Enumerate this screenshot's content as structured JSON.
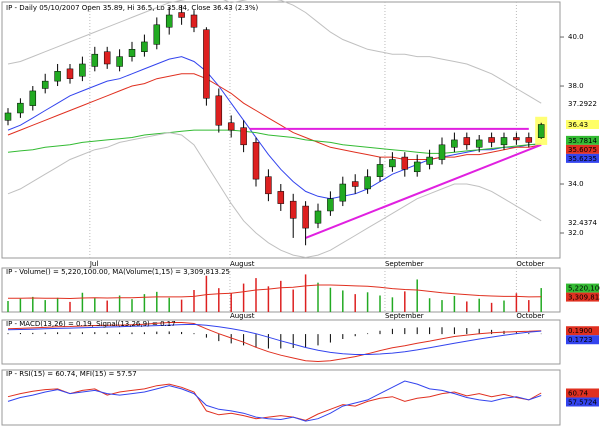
{
  "chart_data": [
    {
      "type": "candlestick",
      "title": "IP - Daily 05/10/2007 Open 35.89, Hi 36.5, Lo 35.84, Close 36.43 (2.3%)",
      "x_labels": [
        {
          "value": 6.6,
          "label": "Jul"
        },
        {
          "value": 17.9,
          "label": "August"
        },
        {
          "value": 30.4,
          "label": "September"
        },
        {
          "value": 41,
          "label": "October"
        }
      ],
      "open": [
        36.6,
        36.9,
        37.2,
        37.9,
        38.2,
        38.7,
        38.4,
        38.8,
        39.4,
        38.8,
        39.2,
        39.4,
        39.7,
        40.4,
        41.0,
        40.9,
        40.3,
        37.6,
        36.5,
        36.3,
        35.7,
        34.3,
        33.7,
        33.3,
        33.1,
        32.4,
        32.9,
        33.3,
        34.1,
        33.8,
        34.3,
        34.7,
        35.1,
        34.5,
        34.8,
        35.0,
        35.5,
        35.9,
        35.5,
        35.9,
        35.6,
        35.9,
        35.9,
        35.89
      ],
      "high": [
        37.1,
        37.5,
        38.0,
        38.5,
        38.9,
        38.9,
        39.2,
        39.6,
        39.6,
        39.5,
        39.8,
        40.1,
        40.8,
        41.2,
        41.3,
        41.1,
        40.4,
        37.9,
        36.8,
        36.6,
        35.9,
        34.6,
        34.0,
        33.6,
        33.3,
        33.2,
        33.7,
        34.3,
        34.4,
        34.6,
        35.1,
        35.3,
        35.3,
        35.2,
        35.4,
        35.9,
        36.1,
        36.1,
        36.0,
        36.1,
        36.1,
        36.1,
        36.1,
        36.5
      ],
      "low": [
        36.4,
        36.7,
        37.0,
        37.7,
        38.0,
        38.1,
        38.2,
        38.6,
        38.7,
        38.6,
        39.0,
        39.2,
        39.5,
        40.1,
        40.5,
        40.2,
        37.2,
        36.1,
        35.9,
        35.3,
        33.9,
        33.3,
        32.9,
        31.8,
        31.5,
        32.2,
        32.7,
        33.1,
        33.6,
        33.6,
        34.1,
        34.5,
        34.3,
        34.3,
        34.6,
        34.8,
        35.3,
        35.4,
        35.3,
        35.5,
        35.4,
        35.6,
        35.5,
        35.84
      ],
      "close": [
        36.9,
        37.3,
        37.8,
        38.2,
        38.6,
        38.3,
        38.9,
        39.3,
        38.9,
        39.2,
        39.5,
        39.8,
        40.5,
        40.9,
        40.8,
        40.4,
        37.5,
        36.4,
        36.2,
        35.6,
        34.2,
        33.6,
        33.2,
        32.6,
        32.2,
        32.9,
        33.4,
        34.0,
        33.9,
        34.3,
        34.8,
        35.0,
        34.6,
        34.9,
        35.1,
        35.6,
        35.8,
        35.6,
        35.8,
        35.7,
        35.9,
        35.8,
        35.7,
        36.43
      ],
      "up_color": "#22aa22",
      "down_color": "#dd2020",
      "series": [
        {
          "color": "#3344ee",
          "values": [
            36.2,
            36.4,
            36.7,
            37.0,
            37.3,
            37.6,
            37.8,
            38.0,
            38.2,
            38.3,
            38.5,
            38.7,
            38.9,
            39.1,
            39.2,
            39.0,
            38.6,
            38.0,
            37.3,
            36.6,
            35.9,
            35.2,
            34.6,
            34.1,
            33.7,
            33.5,
            33.4,
            33.5,
            33.6,
            33.8,
            34.1,
            34.4,
            34.6,
            34.8,
            35.0,
            35.1,
            35.2,
            35.3,
            35.4,
            35.4,
            35.5,
            35.5,
            35.6,
            35.62
          ]
        },
        {
          "color": "#e03020",
          "values": [
            36.0,
            36.2,
            36.4,
            36.6,
            36.8,
            37.0,
            37.2,
            37.4,
            37.6,
            37.8,
            38.0,
            38.1,
            38.3,
            38.4,
            38.5,
            38.5,
            38.3,
            38.0,
            37.7,
            37.3,
            37.0,
            36.7,
            36.4,
            36.1,
            35.9,
            35.7,
            35.5,
            35.4,
            35.3,
            35.2,
            35.1,
            35.1,
            35.0,
            35.0,
            35.0,
            35.1,
            35.1,
            35.2,
            35.2,
            35.3,
            35.4,
            35.5,
            35.5,
            35.6
          ]
        },
        {
          "color": "#33bb33",
          "values": [
            35.3,
            35.35,
            35.4,
            35.5,
            35.55,
            35.6,
            35.7,
            35.75,
            35.8,
            35.85,
            35.9,
            36.0,
            36.05,
            36.1,
            36.15,
            36.2,
            36.2,
            36.2,
            36.2,
            36.15,
            36.1,
            36.0,
            35.95,
            35.9,
            35.8,
            35.75,
            35.7,
            35.6,
            35.55,
            35.5,
            35.45,
            35.4,
            35.35,
            35.3,
            35.25,
            35.25,
            35.3,
            35.35,
            35.4,
            35.45,
            35.5,
            35.55,
            35.6,
            35.65
          ]
        },
        {
          "color": "#c0c0c0",
          "values": [
            38.9,
            39.0,
            39.2,
            39.4,
            39.6,
            39.8,
            40.0,
            40.2,
            40.4,
            40.6,
            40.8,
            41.0,
            41.2,
            41.4,
            41.5,
            41.6,
            41.7,
            41.6,
            41.4,
            41.5,
            41.6,
            41.6,
            41.5,
            41.3,
            41.0,
            40.6,
            40.2,
            39.9,
            39.7,
            39.5,
            39.4,
            39.3,
            39.3,
            39.2,
            39.2,
            39.1,
            39.0,
            38.9,
            38.7,
            38.5,
            38.2,
            37.9,
            37.6,
            37.3
          ]
        },
        {
          "color": "#c0c0c0",
          "values": [
            33.6,
            33.8,
            34.1,
            34.4,
            34.7,
            35.0,
            35.2,
            35.4,
            35.5,
            35.7,
            35.8,
            35.9,
            36.0,
            36.1,
            36.0,
            35.6,
            34.8,
            34.0,
            33.2,
            32.5,
            32.0,
            31.6,
            31.3,
            31.1,
            31.0,
            31.1,
            31.3,
            31.6,
            31.9,
            32.2,
            32.5,
            32.8,
            33.1,
            33.4,
            33.6,
            33.8,
            34.0,
            34.0,
            33.9,
            33.7,
            33.4,
            33.1,
            32.8,
            32.5
          ]
        }
      ],
      "trendlines": [
        {
          "color": "#e020e0",
          "x": [
            19.5,
            42
          ],
          "y": [
            36.25,
            36.25
          ]
        },
        {
          "color": "#e020e0",
          "x": [
            24,
            43
          ],
          "y": [
            31.8,
            35.6
          ]
        }
      ],
      "ylim": [
        30.98,
        41.43
      ],
      "yticks": [
        {
          "value": 40,
          "label": "40.0"
        },
        {
          "value": 38,
          "label": "38.0"
        },
        {
          "value": 34,
          "label": "34.0"
        },
        {
          "value": 32,
          "label": "32.0"
        }
      ],
      "price_labels": [
        {
          "value": 37.2922,
          "label": "37.2922",
          "background": "#ffffff"
        },
        {
          "value": 36.43,
          "label": "36.43",
          "background": "#ffff66"
        },
        {
          "value": 35.7814,
          "label": "35.7814",
          "background": "#33bb33"
        },
        {
          "value": 35.6075,
          "label": "35.6075",
          "background": "#e03020"
        },
        {
          "value": 35.6235,
          "label": "35.6235",
          "background": "#3344ee"
        },
        {
          "value": 32.4374,
          "label": "32.4374",
          "background": "#ffffff"
        }
      ]
    },
    {
      "type": "volume",
      "title": "IP - Volume() = 5,220,100.00, MA(Volume(1,15) = 3,309,813.25",
      "x_labels": [
        {
          "value": 17.9,
          "label": "August"
        },
        {
          "value": 30.4,
          "label": "September"
        },
        {
          "value": 41,
          "label": "October"
        }
      ],
      "values": [
        2400000,
        2900000,
        3300000,
        2600000,
        3100000,
        2200000,
        4200000,
        3000000,
        2500000,
        3600000,
        2800000,
        3900000,
        4400000,
        3100000,
        2700000,
        4800000,
        7900000,
        5200000,
        4100000,
        6200000,
        7400000,
        5600000,
        6800000,
        4900000,
        8200000,
        6400000,
        5300000,
        4700000,
        3900000,
        4300000,
        3600000,
        3200000,
        4500000,
        7100000,
        3000000,
        2600000,
        3500000,
        2300000,
        2900000,
        2000000,
        2500000,
        4100000,
        2600000,
        5220100
      ],
      "ma_color": "#e03020",
      "ma_values": [
        3000000,
        3000000,
        3050000,
        3000000,
        3000000,
        2950000,
        3050000,
        3100000,
        3050000,
        3100000,
        3100000,
        3200000,
        3300000,
        3300000,
        3300000,
        3400000,
        3800000,
        4000000,
        4100000,
        4400000,
        4800000,
        5000000,
        5300000,
        5400000,
        5700000,
        5900000,
        5900000,
        5800000,
        5700000,
        5600000,
        5400000,
        5100000,
        4900000,
        4800000,
        4500000,
        4200000,
        4000000,
        3800000,
        3600000,
        3500000,
        3400000,
        3400000,
        3300000,
        3309813
      ],
      "ylim": [
        0,
        9600000
      ],
      "price_labels": [
        {
          "value": 5220100,
          "label": "5,220,100",
          "background": "#33bb33"
        },
        {
          "value": 3309813,
          "label": "3,309,813",
          "background": "#e03020"
        }
      ]
    },
    {
      "type": "macd",
      "title": "IP - MACD(13,26) = 0.19, Signal(13,26,9) = 0.17",
      "series": [
        {
          "color": "#e03020",
          "values": [
            0.3,
            0.32,
            0.35,
            0.38,
            0.42,
            0.43,
            0.46,
            0.49,
            0.5,
            0.51,
            0.53,
            0.56,
            0.62,
            0.66,
            0.66,
            0.6,
            0.3,
            0.02,
            -0.22,
            -0.46,
            -0.75,
            -1.0,
            -1.2,
            -1.36,
            -1.52,
            -1.56,
            -1.52,
            -1.4,
            -1.28,
            -1.12,
            -0.94,
            -0.78,
            -0.66,
            -0.52,
            -0.4,
            -0.26,
            -0.14,
            -0.06,
            0.02,
            0.07,
            0.11,
            0.14,
            0.16,
            0.19
          ]
        },
        {
          "color": "#3344ee",
          "values": [
            0.25,
            0.26,
            0.28,
            0.3,
            0.32,
            0.34,
            0.36,
            0.38,
            0.4,
            0.42,
            0.44,
            0.46,
            0.48,
            0.51,
            0.54,
            0.55,
            0.5,
            0.42,
            0.31,
            0.18,
            0.02,
            -0.18,
            -0.38,
            -0.57,
            -0.76,
            -0.92,
            -1.04,
            -1.12,
            -1.16,
            -1.16,
            -1.13,
            -1.08,
            -1.0,
            -0.9,
            -0.78,
            -0.65,
            -0.52,
            -0.4,
            -0.28,
            -0.17,
            -0.07,
            0.03,
            0.11,
            0.17
          ]
        }
      ],
      "histogram": [
        0.05,
        0.06,
        0.07,
        0.08,
        0.1,
        0.09,
        0.1,
        0.11,
        0.1,
        0.09,
        0.09,
        0.1,
        0.14,
        0.15,
        0.12,
        0.05,
        -0.2,
        -0.4,
        -0.53,
        -0.64,
        -0.77,
        -0.82,
        -0.82,
        -0.79,
        -0.76,
        -0.64,
        -0.48,
        -0.28,
        -0.12,
        0.04,
        0.19,
        0.3,
        0.34,
        0.38,
        0.38,
        0.39,
        0.38,
        0.34,
        0.3,
        0.24,
        0.18,
        0.11,
        0.05,
        0.02
      ],
      "ylim": [
        -1.7,
        0.8
      ],
      "price_labels": [
        {
          "value": 0.19,
          "label": "0.1900",
          "background": "#e03020"
        },
        {
          "value": 0.1723,
          "label": "0.1723",
          "background": "#3344ee"
        }
      ]
    },
    {
      "type": "rsi",
      "title": "IP - RSI(15) = 60.74, MFI(15) = 57.57",
      "series": [
        {
          "color": "#e03020",
          "values": [
            56,
            60,
            63,
            65,
            66,
            60,
            64,
            66,
            58,
            62,
            64,
            66,
            70,
            72,
            68,
            62,
            38,
            33,
            35,
            32,
            28,
            30,
            32,
            30,
            26,
            34,
            40,
            46,
            44,
            50,
            54,
            56,
            50,
            54,
            56,
            60,
            62,
            57,
            60,
            56,
            59,
            55,
            52,
            60.74
          ]
        },
        {
          "color": "#3344ee",
          "values": [
            50,
            55,
            58,
            62,
            65,
            60,
            62,
            64,
            60,
            58,
            60,
            62,
            66,
            70,
            66,
            60,
            45,
            40,
            38,
            35,
            30,
            28,
            27,
            30,
            25,
            28,
            35,
            44,
            48,
            52,
            60,
            68,
            76,
            72,
            66,
            64,
            60,
            55,
            52,
            50,
            54,
            56,
            52,
            57.57
          ]
        }
      ],
      "ylim": [
        20,
        90
      ],
      "price_labels": [
        {
          "value": 60.74,
          "label": "60.74",
          "background": "#e03020"
        },
        {
          "value": 57.57,
          "label": "57.5724",
          "background": "#3344ee"
        }
      ]
    }
  ]
}
